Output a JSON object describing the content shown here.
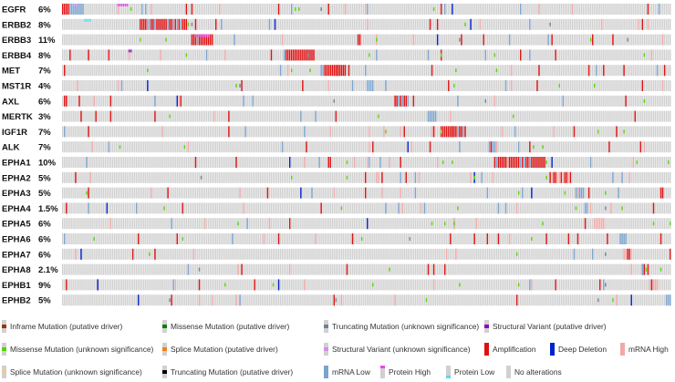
{
  "chart_data": {
    "type": "heatmap",
    "title": "",
    "samples_shown": 330,
    "genes": [
      {
        "name": "EGFR",
        "pct": "6%"
      },
      {
        "name": "ERBB2",
        "pct": "8%"
      },
      {
        "name": "ERBB3",
        "pct": "11%"
      },
      {
        "name": "ERBB4",
        "pct": "8%"
      },
      {
        "name": "MET",
        "pct": "7%"
      },
      {
        "name": "MST1R",
        "pct": "4%"
      },
      {
        "name": "AXL",
        "pct": "6%"
      },
      {
        "name": "MERTK",
        "pct": "3%"
      },
      {
        "name": "IGF1R",
        "pct": "7%"
      },
      {
        "name": "ALK",
        "pct": "7%"
      },
      {
        "name": "EPHA1",
        "pct": "10%"
      },
      {
        "name": "EPHA2",
        "pct": "5%"
      },
      {
        "name": "EPHA3",
        "pct": "5%"
      },
      {
        "name": "EPHA4",
        "pct": "1.5%"
      },
      {
        "name": "EPHA5",
        "pct": "6%"
      },
      {
        "name": "EPHA6",
        "pct": "6%"
      },
      {
        "name": "EPHA7",
        "pct": "6%"
      },
      {
        "name": "EPHA8",
        "pct": "2.1%"
      },
      {
        "name": "EPHB1",
        "pct": "9%"
      },
      {
        "name": "EPHB2",
        "pct": "5%"
      }
    ],
    "legend": [
      {
        "key": "inframe_driver",
        "label": "Inframe Mutation (putative driver)",
        "color": "#993404"
      },
      {
        "key": "missense_driver",
        "label": "Missense Mutation (putative driver)",
        "color": "#008000"
      },
      {
        "key": "truncating_unknown",
        "label": "Truncating Mutation (unknown significance)",
        "color": "#708090"
      },
      {
        "key": "sv_driver",
        "label": "Structural Variant (putative driver)",
        "color": "#8B00C9"
      },
      {
        "key": "missense_unknown",
        "label": "Missense Mutation (unknown significance)",
        "color": "#53D400"
      },
      {
        "key": "splice_driver",
        "label": "Splice Mutation (putative driver)",
        "color": "#F57F17"
      },
      {
        "key": "sv_unknown",
        "label": "Structural Variant (unknown significance)",
        "color": "#CE92E8"
      },
      {
        "key": "amplification",
        "label": "Amplification",
        "color": "#DD1111"
      },
      {
        "key": "deep_deletion",
        "label": "Deep Deletion",
        "color": "#0022CC"
      },
      {
        "key": "mrna_high",
        "label": "mRNA High",
        "color": "#F0A8A8"
      },
      {
        "key": "splice_unknown",
        "label": "Splice Mutation (unknown significance)",
        "color": "#F0C896"
      },
      {
        "key": "truncating_driver",
        "label": "Truncating Mutation (putative driver)",
        "color": "#000000"
      },
      {
        "key": "mrna_low",
        "label": "mRNA Low",
        "color": "#7AA3CF"
      },
      {
        "key": "protein_high",
        "label": "Protein High",
        "color": "#EE44EE"
      },
      {
        "key": "protein_low",
        "label": "Protein Low",
        "color": "#5DD8E8"
      },
      {
        "key": "no_alterations",
        "label": "No alterations",
        "color": "#D0D0D0"
      }
    ]
  }
}
